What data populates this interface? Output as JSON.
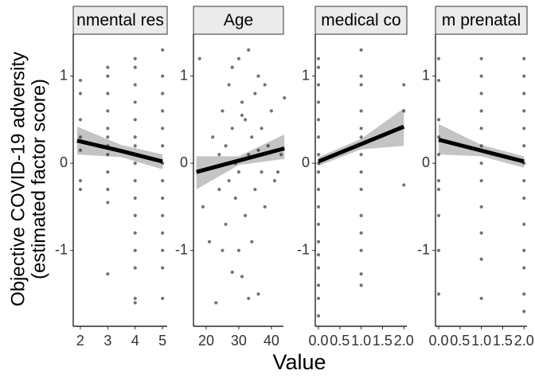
{
  "chart_data": [
    {
      "type": "scatter",
      "title": "nmental res",
      "ylabel": [
        "Objective COVID-19 adversity",
        "(estimated factor score)"
      ],
      "xlabel": "Value",
      "x": [
        2,
        2,
        2,
        2,
        2,
        2,
        2,
        3,
        3,
        3,
        3,
        3,
        3,
        3,
        3,
        3,
        3,
        3,
        3,
        4,
        4,
        4,
        4,
        4,
        4,
        4,
        4,
        4,
        4,
        4,
        4,
        4,
        4,
        4,
        4,
        5,
        5,
        5,
        5,
        5,
        5,
        5,
        5,
        5,
        5,
        5,
        5,
        5,
        5
      ],
      "y": [
        0.95,
        0.8,
        0.5,
        0.3,
        0.15,
        -0.2,
        -0.3,
        1.1,
        1.0,
        0.8,
        0.6,
        0.4,
        0.3,
        0.2,
        0.1,
        -0.1,
        -0.3,
        -0.45,
        -1.27,
        1.2,
        1.1,
        0.9,
        0.7,
        0.5,
        0.3,
        0.2,
        0.0,
        -0.2,
        -0.4,
        -0.6,
        -0.8,
        -1.0,
        -1.2,
        -1.55,
        -1.6,
        1.3,
        1.0,
        0.8,
        0.6,
        0.4,
        0.2,
        0.0,
        -0.2,
        -0.4,
        -0.6,
        -0.8,
        -1.0,
        -1.2,
        -1.55
      ],
      "color": "#000000",
      "fit": {
        "x": [
          1.88,
          3.5,
          5
        ],
        "y": [
          0.26,
          0.14,
          0.02
        ],
        "lower": [
          0.1,
          0.07,
          -0.07
        ],
        "upper": [
          0.42,
          0.21,
          0.1
        ],
        "color": "#000000",
        "band_color": "#c4c4c4"
      },
      "xlim": [
        1.74,
        5.17
      ],
      "ylim": [
        -1.87,
        1.48
      ],
      "xticks": [
        2,
        3,
        4,
        5
      ],
      "yticks": [
        -1,
        0,
        1
      ]
    },
    {
      "type": "scatter",
      "title": "Age",
      "x": [
        18,
        19,
        21,
        22,
        23,
        24,
        24,
        25,
        26,
        26,
        27,
        27,
        28,
        28,
        29,
        29,
        30,
        30,
        31,
        31,
        32,
        32,
        33,
        33,
        34,
        34,
        35,
        35,
        36,
        36,
        37,
        37,
        38,
        38,
        39,
        40,
        41,
        42,
        43,
        44,
        25,
        33,
        30,
        36,
        28,
        31
      ],
      "y": [
        1.2,
        -0.5,
        -0.9,
        0.3,
        -1.6,
        0.1,
        -0.3,
        0.6,
        -0.7,
        0.2,
        0.9,
        -0.2,
        1.1,
        0.4,
        -0.4,
        0.0,
        1.2,
        -0.1,
        0.7,
        -1.3,
        0.5,
        -0.6,
        1.3,
        0.1,
        0.3,
        -0.9,
        0.8,
        -0.3,
        1.0,
        -1.5,
        0.4,
        -0.1,
        0.9,
        -0.5,
        0.2,
        0.6,
        -0.2,
        -0.1,
        0.1,
        0.75,
        -1.0,
        -1.55,
        -1.0,
        0.15,
        -1.25,
        0.55
      ],
      "color": "#000000",
      "fit": {
        "x": [
          17,
          30,
          44
        ],
        "y": [
          -0.1,
          0.03,
          0.17
        ],
        "lower": [
          -0.3,
          -0.02,
          0.05
        ],
        "upper": [
          0.08,
          0.08,
          0.33
        ],
        "color": "#000000",
        "band_color": "#c4c4c4"
      },
      "xlim": [
        16.1,
        43.7
      ],
      "ylim": [
        -1.87,
        1.48
      ],
      "xticks": [
        20,
        30,
        40
      ],
      "yticks": [
        -1,
        0,
        1
      ]
    },
    {
      "type": "scatter",
      "title": "medical co",
      "x": [
        0,
        0,
        0,
        0,
        0,
        0,
        0,
        0,
        0,
        0,
        0,
        0,
        0,
        0,
        0,
        0,
        0,
        0,
        1,
        1,
        1,
        1,
        1,
        1,
        1,
        1,
        1,
        1,
        1,
        1,
        1,
        1,
        2,
        2,
        2
      ],
      "y": [
        1.2,
        1.1,
        0.9,
        0.7,
        0.5,
        0.3,
        0.1,
        0.0,
        -0.1,
        -0.3,
        -0.5,
        -0.7,
        -0.9,
        -1.05,
        -1.2,
        -1.4,
        -1.55,
        -1.75,
        1.3,
        1.0,
        0.9,
        0.6,
        0.4,
        0.3,
        0.1,
        -0.1,
        -0.3,
        -0.6,
        -0.8,
        -1.0,
        -1.27,
        -1.4,
        0.9,
        0.6,
        -0.25
      ],
      "color": "#000000",
      "fit": {
        "x": [
          0,
          1,
          2
        ],
        "y": [
          0.02,
          0.22,
          0.42
        ],
        "lower": [
          -0.03,
          0.16,
          0.2
        ],
        "upper": [
          0.07,
          0.28,
          0.63
        ],
        "color": "#000000",
        "band_color": "#c4c4c4"
      },
      "xlim": [
        -0.075,
        2.07
      ],
      "ylim": [
        -1.87,
        1.48
      ],
      "xticks": [
        {
          "value": 0,
          "label": "0.0"
        },
        0.5,
        {
          "value": 1,
          "label": "1.0"
        },
        1.5,
        {
          "value": 2,
          "label": "2.0"
        }
      ],
      "yticks": [
        -1,
        0,
        1
      ]
    },
    {
      "type": "scatter",
      "title": "m prenatal",
      "x": [
        0,
        0,
        0,
        0,
        0,
        0,
        0,
        0,
        0,
        0,
        1,
        1,
        1,
        1,
        1,
        1,
        1,
        1,
        1,
        1,
        1,
        1,
        2,
        2,
        2,
        2,
        2,
        2,
        2,
        2,
        2,
        2,
        2,
        2,
        2,
        2
      ],
      "y": [
        1.2,
        0.95,
        0.5,
        0.3,
        0.1,
        -0.2,
        -0.3,
        -0.6,
        -1.0,
        -1.5,
        1.2,
        1.0,
        0.8,
        0.6,
        0.4,
        0.2,
        0.0,
        -0.2,
        -0.5,
        -0.8,
        -1.1,
        -1.55,
        1.2,
        1.0,
        0.8,
        0.6,
        0.4,
        0.2,
        0.0,
        -0.2,
        -0.4,
        -0.7,
        -1.0,
        -1.2,
        -1.5,
        -1.7
      ],
      "color": "#000000",
      "fit": {
        "x": [
          0,
          1,
          2
        ],
        "y": [
          0.27,
          0.145,
          0.02
        ],
        "lower": [
          0.1,
          0.08,
          -0.05
        ],
        "upper": [
          0.45,
          0.21,
          0.08
        ],
        "color": "#000000",
        "band_color": "#c4c4c4"
      },
      "xlim": [
        -0.075,
        2.07
      ],
      "ylim": [
        -1.87,
        1.48
      ],
      "xticks": [
        {
          "value": 0,
          "label": "0.0"
        },
        0.5,
        {
          "value": 1,
          "label": "1.0"
        },
        1.5,
        {
          "value": 2,
          "label": "2.0"
        }
      ],
      "yticks": [
        -1,
        0,
        1
      ]
    }
  ]
}
